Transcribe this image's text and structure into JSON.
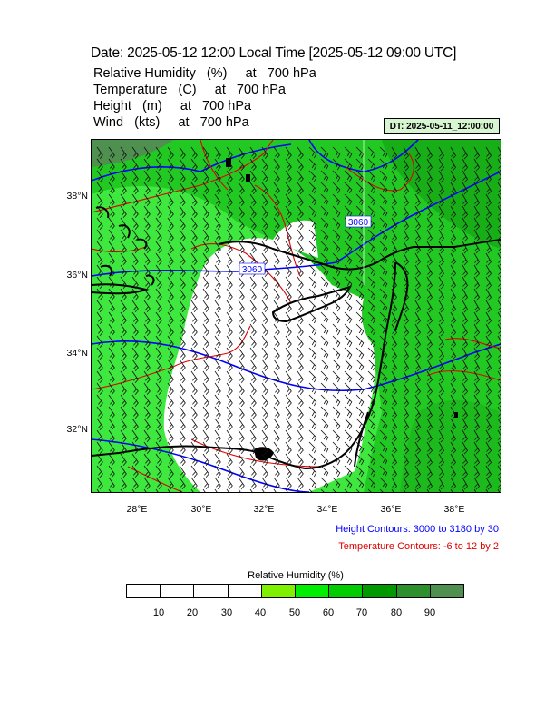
{
  "header": {
    "title": "Date: 2025-05-12  12:00 Local Time [2025-05-12  09:00 UTC]",
    "variables": [
      "Relative Humidity   (%)     at   700 hPa",
      "Temperature   (C)     at   700 hPa",
      "Height   (m)     at   700 hPa",
      "Wind   (kts)     at   700 hPa"
    ],
    "dt_label": "DT: 2025-05-11_12:00:00"
  },
  "map": {
    "lat_labels": [
      "38°N",
      "36°N",
      "34°N",
      "32°N"
    ],
    "lon_labels": [
      "28°E",
      "30°E",
      "32°E",
      "34°E",
      "36°E",
      "38°E"
    ],
    "contour_labels": [
      "3060",
      "3060"
    ],
    "colors": {
      "height_contour": "#0000ff",
      "temperature_contour": "#e00000",
      "coastline": "#000000"
    }
  },
  "legend": {
    "height": "Height Contours: 3000 to 3180 by 30",
    "temperature": "Temperature Contours: -6 to 12 by 2"
  },
  "colorbar": {
    "title": "Relative Humidity  (%)",
    "ticks": [
      "10",
      "20",
      "30",
      "40",
      "50",
      "60",
      "70",
      "80",
      "90"
    ],
    "colors": [
      "#ffffff",
      "#ffffff",
      "#ffffff",
      "#ffffff",
      "#7ff000",
      "#00ee00",
      "#00cc00",
      "#009900",
      "#2d902d",
      "#4f8f4f"
    ]
  }
}
